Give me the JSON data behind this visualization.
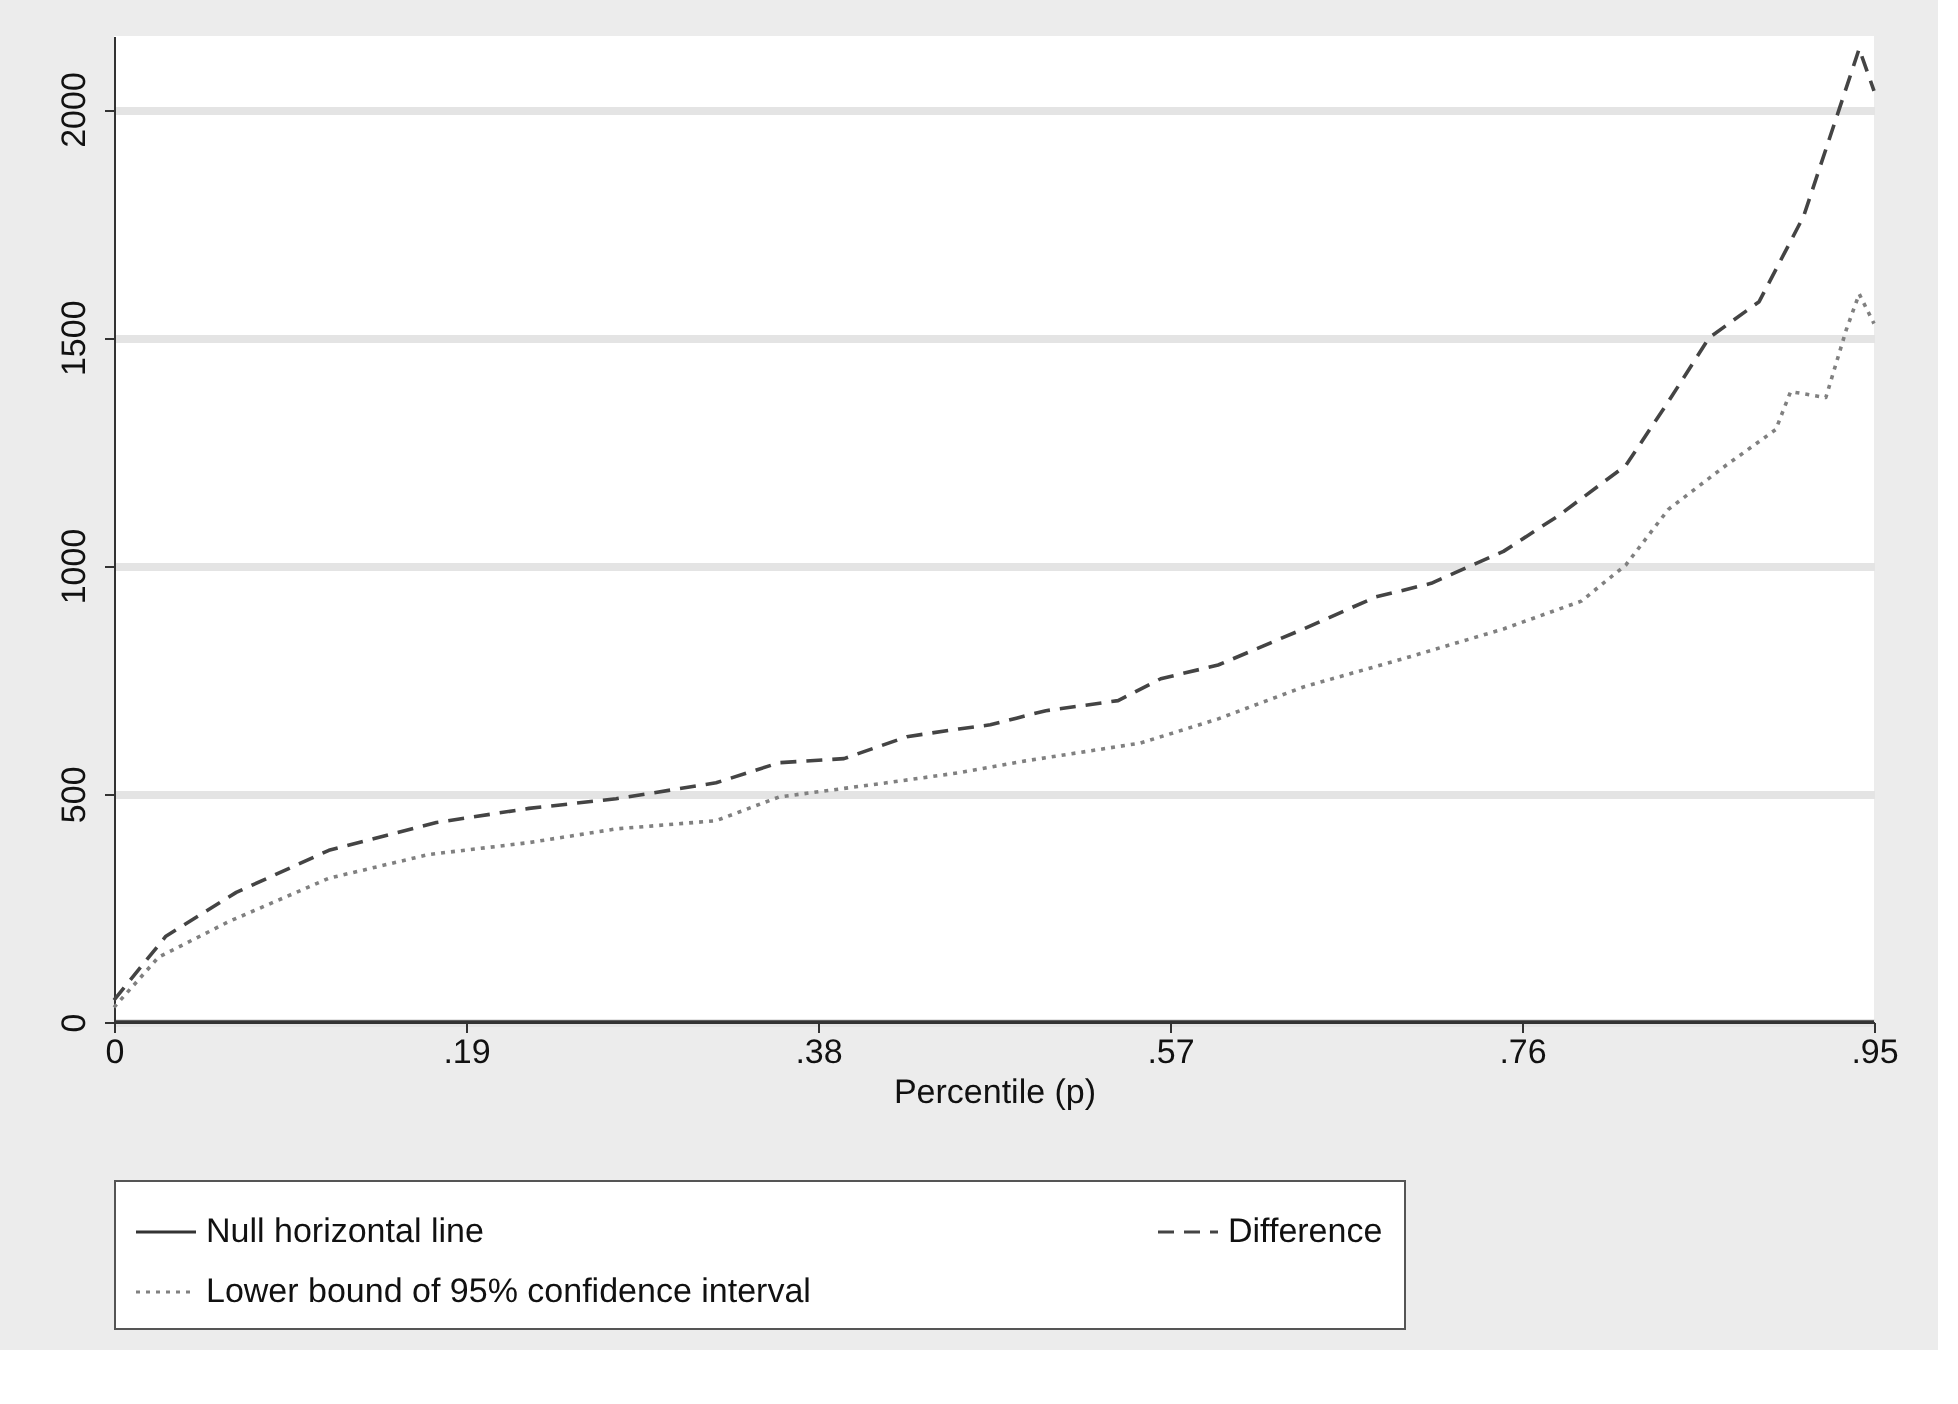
{
  "chart_data": {
    "type": "line",
    "xlabel": "Percentile (p)",
    "xlim": [
      0,
      0.95
    ],
    "ylim": [
      0,
      2160
    ],
    "xticks": [
      0,
      {
        "value": 0.19,
        "label": ".19"
      },
      {
        "value": 0.38,
        "label": ".38"
      },
      {
        "value": 0.57,
        "label": ".57"
      },
      {
        "value": 0.76,
        "label": ".76"
      },
      {
        "value": 0.95,
        "label": ".95"
      }
    ],
    "yticks": [
      0,
      500,
      1000,
      1500,
      2000
    ],
    "grid": "y",
    "legend": "bottom",
    "marker": "none",
    "series": [
      {
        "name": "Null horizontal line",
        "color": "#333333",
        "line_style": "solid",
        "x": [
          0,
          0.95
        ],
        "values": [
          0,
          0
        ]
      },
      {
        "name": "Difference",
        "color": "#444444",
        "line_style": "dashed",
        "x": [
          0,
          0.028,
          0.066,
          0.116,
          0.174,
          0.224,
          0.271,
          0.325,
          0.359,
          0.394,
          0.428,
          0.456,
          0.473,
          0.503,
          0.542,
          0.565,
          0.596,
          0.642,
          0.681,
          0.711,
          0.75,
          0.78,
          0.816,
          0.839,
          0.861,
          0.888,
          0.912,
          0.931,
          0.942,
          0.95
        ],
        "values": [
          48,
          188,
          284,
          376,
          437,
          468,
          489,
          524,
          568,
          577,
          625,
          642,
          651,
          682,
          704,
          752,
          782,
          861,
          931,
          961,
          1031,
          1110,
          1219,
          1359,
          1499,
          1578,
          1765,
          1997,
          2132,
          2040
        ]
      },
      {
        "name": "Lower bound of 95% confidence interval",
        "color": "#808080",
        "line_style": "dotted",
        "x": [
          0,
          0.024,
          0.062,
          0.116,
          0.17,
          0.224,
          0.271,
          0.325,
          0.359,
          0.417,
          0.456,
          0.492,
          0.554,
          0.596,
          0.642,
          0.696,
          0.75,
          0.792,
          0.816,
          0.839,
          0.87,
          0.897,
          0.905,
          0.924,
          0.935,
          0.942,
          0.95
        ],
        "values": [
          32,
          142,
          220,
          315,
          367,
          393,
          423,
          441,
          493,
          524,
          546,
          572,
          611,
          664,
          734,
          796,
          861,
          922,
          1001,
          1123,
          1219,
          1298,
          1381,
          1368,
          1516,
          1595,
          1530
        ]
      }
    ]
  }
}
